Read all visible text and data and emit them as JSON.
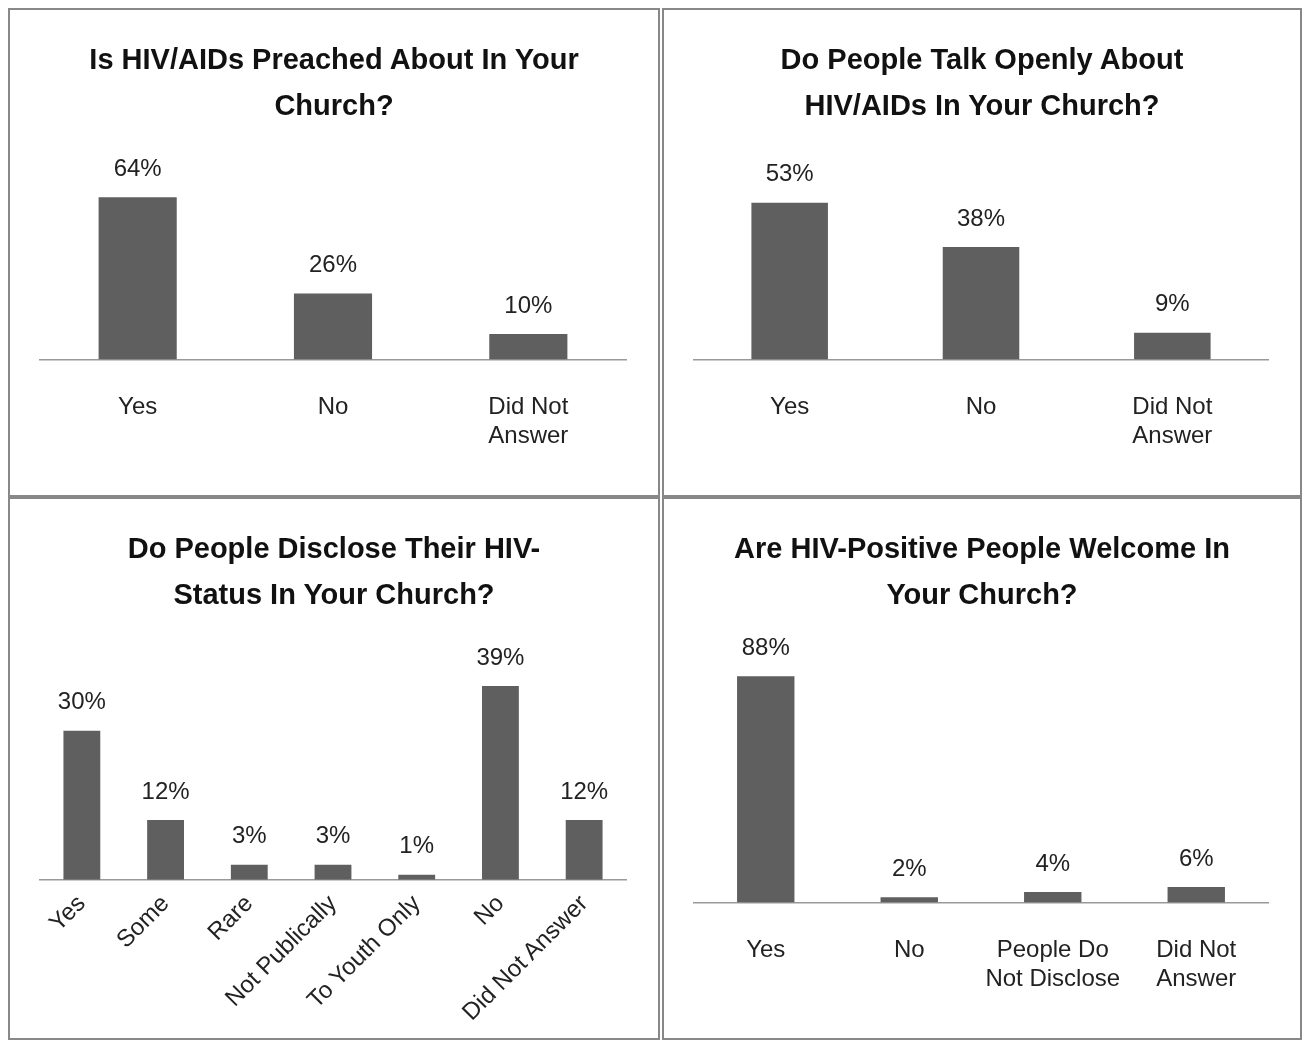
{
  "chart_data": [
    {
      "type": "bar",
      "title": "Is HIV/AIDs Preached About In Your Church?",
      "categories": [
        "Yes",
        "No",
        "Did Not Answer"
      ],
      "values": [
        64,
        26,
        10
      ],
      "value_labels": [
        "64%",
        "26%",
        "10%"
      ],
      "color": "#5f5f5f",
      "grid": false,
      "legend": false,
      "tick_labels": "x"
    },
    {
      "type": "bar",
      "title": "Do People Talk Openly About HIV/AIDs In Your Church?",
      "categories": [
        "Yes",
        "No",
        "Did Not Answer"
      ],
      "values": [
        53,
        38,
        9
      ],
      "value_labels": [
        "53%",
        "38%",
        "9%"
      ],
      "color": "#5f5f5f",
      "grid": false,
      "legend": false,
      "tick_labels": "x"
    },
    {
      "type": "bar",
      "title": "Do People Disclose Their HIV-Status In Your Church?",
      "categories": [
        "Yes",
        "Some",
        "Rare",
        "Not Publically",
        "To Youth Only",
        "No",
        "Did Not Answer"
      ],
      "values": [
        30,
        12,
        3,
        3,
        1,
        39,
        12
      ],
      "value_labels": [
        "30%",
        "12%",
        "3%",
        "3%",
        "1%",
        "39%",
        "12%"
      ],
      "color": "#5f5f5f",
      "grid": false,
      "legend": false,
      "tick_labels": "x"
    },
    {
      "type": "bar",
      "title": "Are HIV-Positive People Welcome In Your Church?",
      "categories": [
        "Yes",
        "No",
        "People Do Not Disclose",
        "Did Not Answer"
      ],
      "values": [
        88,
        2,
        4,
        6
      ],
      "value_labels": [
        "88%",
        "2%",
        "4%",
        "6%"
      ],
      "color": "#5f5f5f",
      "grid": false,
      "legend": false,
      "tick_labels": "x"
    }
  ]
}
